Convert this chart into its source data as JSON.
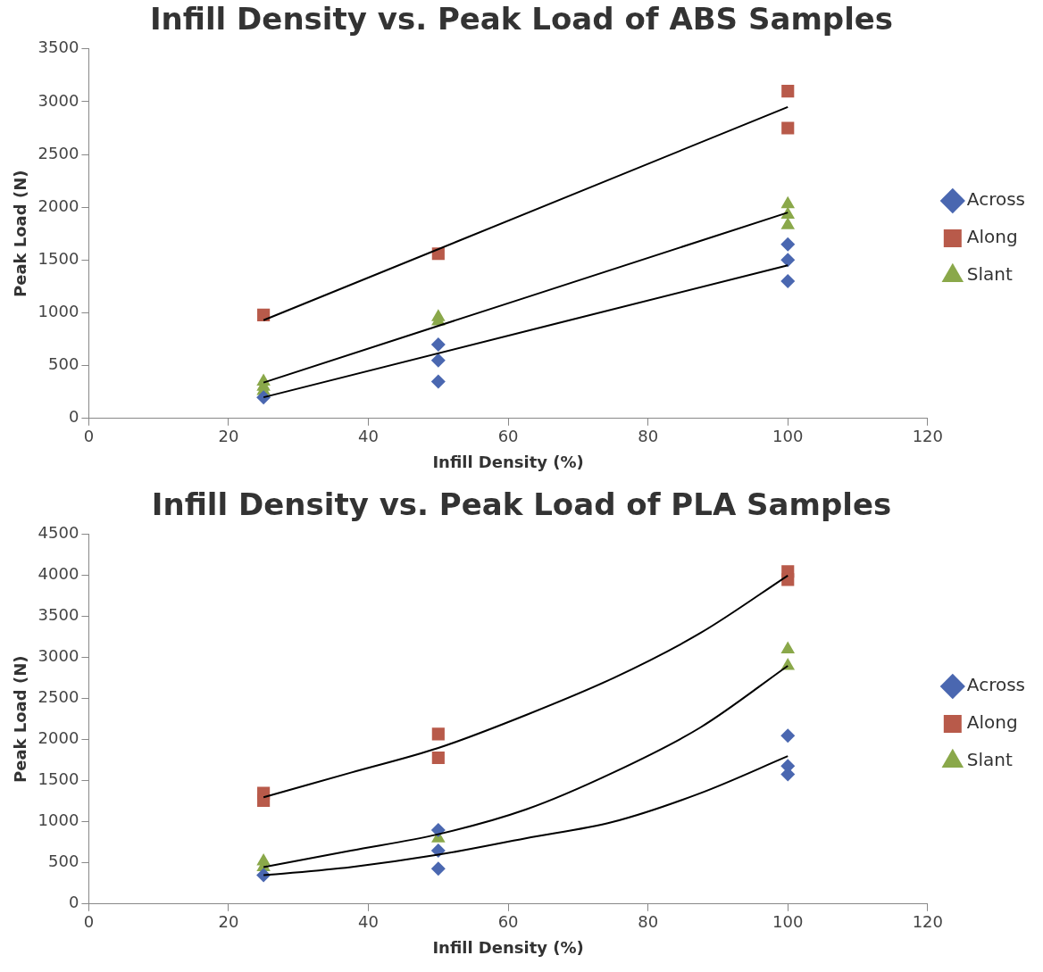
{
  "chart_data": [
    {
      "type": "scatter",
      "title": "Infill Density vs. Peak Load of ABS Samples",
      "xlabel": "Infill Density (%)",
      "ylabel": "Peak Load (N)",
      "xlim": [
        0,
        120
      ],
      "xticks": [
        0,
        20,
        40,
        60,
        80,
        100,
        120
      ],
      "ylim": [
        0,
        3500
      ],
      "yticks": [
        0,
        500,
        1000,
        1500,
        2000,
        2500,
        3000,
        3500
      ],
      "grid": false,
      "legend": "right",
      "series": [
        {
          "name": "Across",
          "color": "#4a67b0",
          "marker": "diamond",
          "x": [
            25,
            50,
            50,
            50,
            100,
            100,
            100
          ],
          "values": [
            200,
            700,
            550,
            350,
            1650,
            1500,
            1300
          ]
        },
        {
          "name": "Along",
          "color": "#b85a4a",
          "marker": "square",
          "x": [
            25,
            50,
            100,
            100
          ],
          "values": [
            980,
            1560,
            3100,
            2750
          ]
        },
        {
          "name": "Slant",
          "color": "#8aa84a",
          "marker": "triangle",
          "x": [
            25,
            25,
            25,
            50,
            50,
            100,
            100,
            100
          ],
          "values": [
            350,
            300,
            260,
            960,
            920,
            2030,
            1930,
            1830
          ]
        },
        {
          "type": "line",
          "color": "#000000",
          "marker": "none",
          "x": [
            25,
            100
          ],
          "values": [
            200,
            1450
          ]
        },
        {
          "type": "line",
          "color": "#000000",
          "marker": "none",
          "x": [
            25,
            100
          ],
          "values": [
            930,
            2950
          ]
        },
        {
          "type": "line",
          "color": "#000000",
          "marker": "none",
          "x": [
            25,
            100
          ],
          "values": [
            340,
            1950
          ]
        }
      ]
    },
    {
      "type": "scatter",
      "title": "Infill Density vs. Peak Load of PLA Samples",
      "xlabel": "Infill Density (%)",
      "ylabel": "Peak Load (N)",
      "xlim": [
        0,
        120
      ],
      "xticks": [
        0,
        20,
        40,
        60,
        80,
        100,
        120
      ],
      "ylim": [
        0,
        4500
      ],
      "yticks": [
        0,
        500,
        1000,
        1500,
        2000,
        2500,
        3000,
        3500,
        4000,
        4500
      ],
      "grid": false,
      "legend": "right",
      "series": [
        {
          "name": "Across",
          "color": "#4a67b0",
          "marker": "diamond",
          "x": [
            25,
            50,
            50,
            50,
            100,
            100,
            100
          ],
          "values": [
            350,
            900,
            650,
            430,
            2050,
            1680,
            1580
          ]
        },
        {
          "name": "Along",
          "color": "#b85a4a",
          "marker": "square",
          "x": [
            25,
            25,
            50,
            50,
            100,
            100
          ],
          "values": [
            1350,
            1260,
            2070,
            1780,
            4050,
            3950
          ]
        },
        {
          "name": "Slant",
          "color": "#8aa84a",
          "marker": "triangle",
          "x": [
            25,
            25,
            50,
            100,
            100
          ],
          "values": [
            520,
            450,
            800,
            3100,
            2900
          ]
        },
        {
          "type": "line",
          "color": "#000000",
          "marker": "none",
          "x": [
            25,
            37.5,
            50,
            62.5,
            75,
            87.5,
            100
          ],
          "values": [
            350,
            450,
            600,
            800,
            1000,
            1350,
            1800
          ]
        },
        {
          "type": "line",
          "color": "#000000",
          "marker": "none",
          "x": [
            25,
            37.5,
            50,
            62.5,
            75,
            87.5,
            100
          ],
          "values": [
            1300,
            1600,
            1900,
            2300,
            2750,
            3300,
            4000
          ]
        },
        {
          "type": "line",
          "color": "#000000",
          "marker": "none",
          "x": [
            25,
            37.5,
            50,
            62.5,
            75,
            87.5,
            100
          ],
          "values": [
            450,
            650,
            850,
            1150,
            1600,
            2150,
            2900
          ]
        }
      ]
    }
  ]
}
